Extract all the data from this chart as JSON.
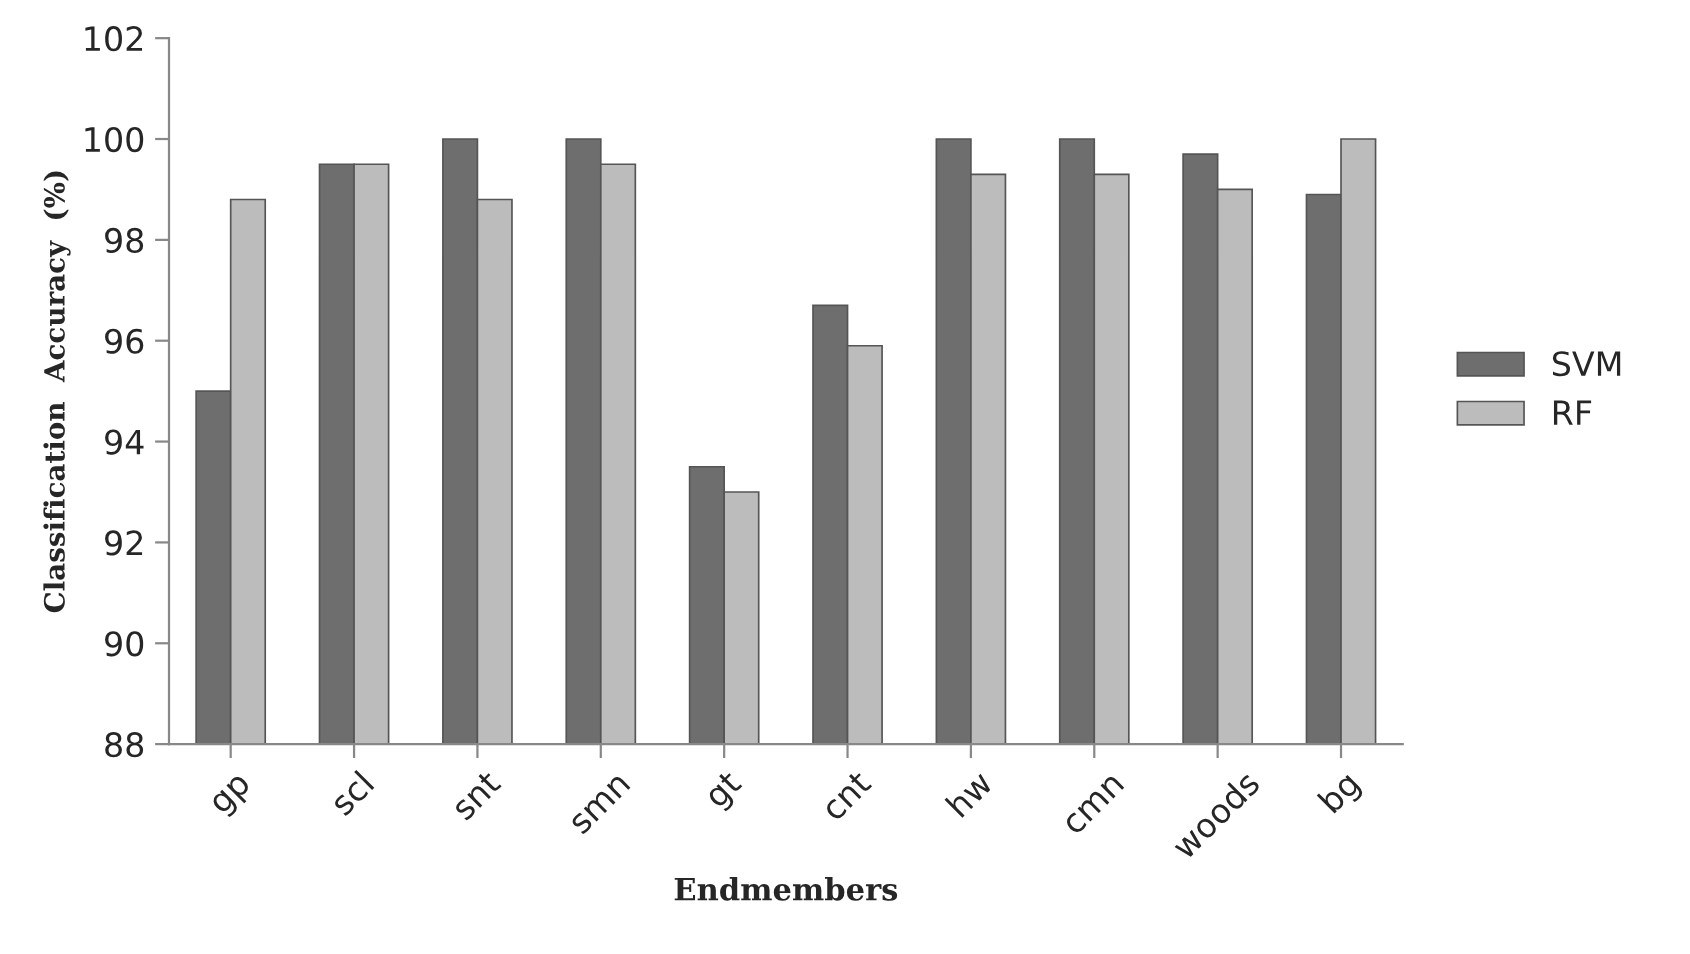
{
  "chart_data": {
    "type": "bar",
    "xlabel": "Endmembers",
    "ylabel": "Classification  Accuracy  (%)",
    "categories": [
      "gp",
      "scl",
      "snt",
      "smn",
      "gt",
      "cnt",
      "hw",
      "cmn",
      "woods",
      "bg"
    ],
    "series": [
      {
        "name": "SVM",
        "color": "#6e6e6e",
        "values": [
          95.0,
          99.5,
          100.0,
          100.0,
          93.5,
          96.7,
          100.0,
          100.0,
          99.7,
          98.9
        ]
      },
      {
        "name": "RF",
        "color": "#bcbcbc",
        "values": [
          98.8,
          99.5,
          98.8,
          99.5,
          93.0,
          95.9,
          99.3,
          99.3,
          99.0,
          100.0
        ]
      }
    ],
    "ylim": [
      88,
      102
    ],
    "yticks": [
      88,
      90,
      92,
      94,
      96,
      98,
      100,
      102
    ],
    "grid": false,
    "legend": "right"
  }
}
